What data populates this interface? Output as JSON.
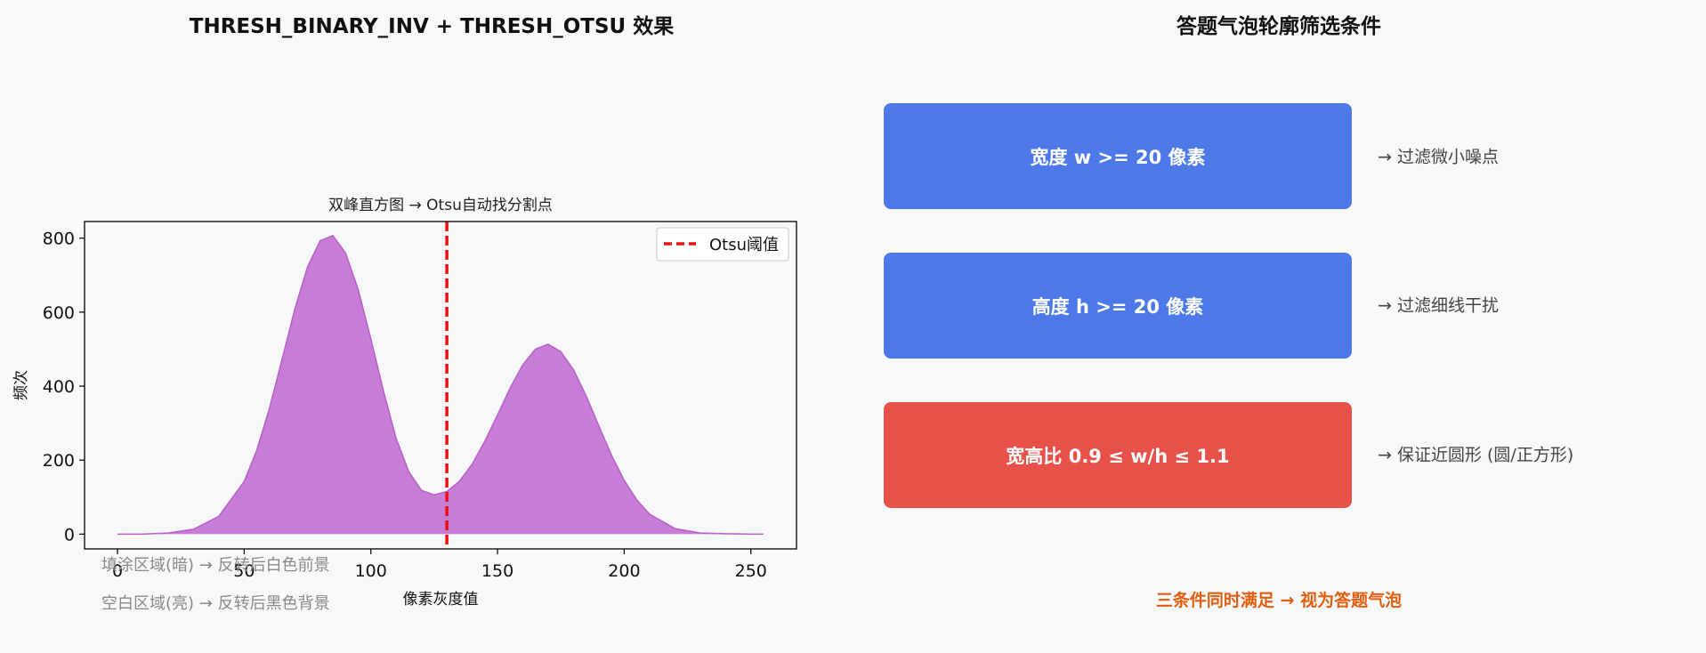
{
  "left_panel": {
    "title": "THRESH_BINARY_INV + THRESH_OTSU 效果"
  },
  "right_panel": {
    "title": "答题气泡轮廓筛选条件"
  },
  "chart_data": {
    "type": "area",
    "title": "双峰直方图 → Otsu自动找分割点",
    "xlabel": "像素灰度值",
    "ylabel": "频次",
    "xlim": [
      -13,
      268
    ],
    "ylim": [
      -40,
      845
    ],
    "xticks": [
      0,
      50,
      100,
      150,
      200,
      250
    ],
    "yticks": [
      0,
      200,
      400,
      600,
      800
    ],
    "grid": false,
    "legend_position": "top-right",
    "series": [
      {
        "kind": "filled-area",
        "x": [
          0,
          10,
          20,
          30,
          40,
          50,
          55,
          60,
          65,
          70,
          75,
          80,
          85,
          90,
          95,
          100,
          105,
          110,
          115,
          120,
          125,
          130,
          135,
          140,
          145,
          150,
          155,
          160,
          165,
          170,
          175,
          180,
          185,
          190,
          195,
          200,
          205,
          210,
          220,
          230,
          240,
          250,
          255
        ],
        "values": [
          0,
          0,
          3,
          13,
          48,
          142,
          227,
          340,
          473,
          608,
          722,
          793,
          807,
          760,
          661,
          527,
          386,
          258,
          168,
          118,
          106,
          115,
          143,
          189,
          251,
          322,
          395,
          458,
          500,
          513,
          493,
          444,
          373,
          292,
          213,
          145,
          92,
          54,
          15,
          3,
          1,
          0,
          0
        ],
        "color": "#c77dd6",
        "edge_color": "#b862c8"
      },
      {
        "name": "Otsu阈值",
        "kind": "vline",
        "x": 130,
        "color": "#ee1111",
        "style": "dashed"
      }
    ]
  },
  "annotations": {
    "filled_note": "填涂区域(暗) → 反转后白色前景",
    "blank_note": "空白区域(亮) → 反转后黑色背景"
  },
  "conditions": [
    {
      "label": "宽度 w >= 20 像素",
      "note": "→ 过滤微小噪点",
      "color": "#4d79e8"
    },
    {
      "label": "高度 h >= 20 像素",
      "note": "→ 过滤细线干扰",
      "color": "#4d79e8"
    },
    {
      "label": "宽高比 0.9 ≤ w/h ≤ 1.1",
      "note": "→ 保证近圆形 (圆/正方形)",
      "color": "#e8504a"
    }
  ],
  "conclusion": "三条件同时满足 → 视为答题气泡"
}
